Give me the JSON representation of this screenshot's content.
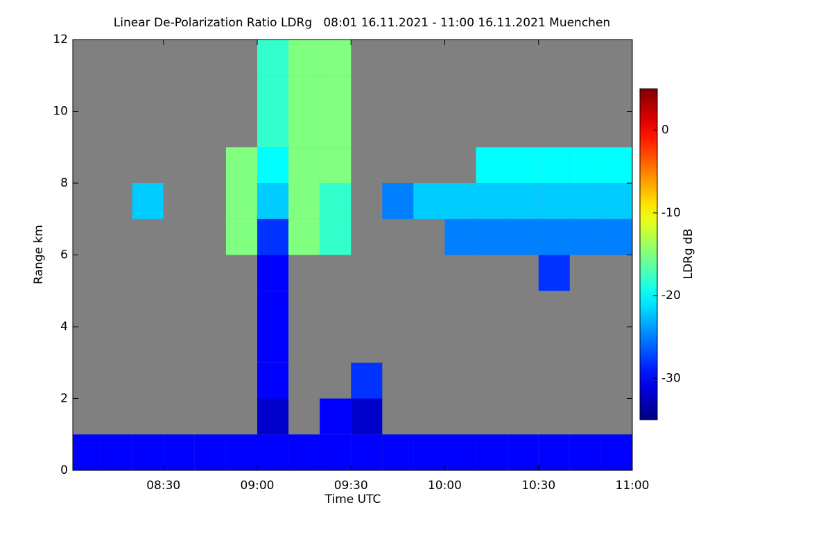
{
  "chart_data": {
    "type": "heatmap",
    "title": "Linear De-Polarization Ratio LDRg   08:01 16.11.2021 - 11:00 16.11.2021 Muenchen",
    "x_label": "Time UTC",
    "y_label": "Range km",
    "colorbar_label": "LDRg dB",
    "xlim": [
      481,
      660
    ],
    "xticks": [
      {
        "value": 510,
        "label": "08:30"
      },
      {
        "value": 540,
        "label": "09:00"
      },
      {
        "value": 570,
        "label": "09:30"
      },
      {
        "value": 600,
        "label": "10:00"
      },
      {
        "value": 630,
        "label": "10:30"
      },
      {
        "value": 660,
        "label": "11:00"
      }
    ],
    "ylim": [
      0,
      12
    ],
    "yticks": [
      0,
      2,
      4,
      6,
      8,
      10,
      12
    ],
    "clim": [
      -35,
      5
    ],
    "cticks": [
      -30,
      -20,
      -10,
      0
    ],
    "x_bins": [
      480,
      490,
      500,
      510,
      520,
      530,
      540,
      550,
      560,
      570,
      580,
      590,
      600,
      610,
      620,
      630,
      640,
      650,
      660
    ],
    "y_bins": [
      0,
      1,
      2,
      3,
      4,
      5,
      6,
      7,
      8,
      9,
      10,
      11,
      12
    ],
    "z": [
      [
        -30,
        -30,
        -30,
        -30,
        -30,
        -30,
        -30,
        -30,
        -30,
        -30,
        -30,
        -30,
        -30,
        -30,
        -30,
        -30,
        -30,
        -30
      ],
      [
        null,
        null,
        null,
        null,
        null,
        null,
        -32,
        null,
        -30,
        -32,
        null,
        null,
        null,
        null,
        null,
        null,
        null,
        null
      ],
      [
        null,
        null,
        null,
        null,
        null,
        null,
        -30,
        null,
        null,
        -28,
        null,
        null,
        null,
        null,
        null,
        null,
        null,
        null
      ],
      [
        null,
        null,
        null,
        null,
        null,
        null,
        -30,
        null,
        null,
        null,
        null,
        null,
        null,
        null,
        null,
        null,
        null,
        null
      ],
      [
        null,
        null,
        null,
        null,
        null,
        null,
        -30,
        null,
        null,
        null,
        null,
        null,
        null,
        null,
        null,
        null,
        null,
        null
      ],
      [
        null,
        null,
        null,
        null,
        null,
        null,
        -30,
        null,
        null,
        null,
        null,
        null,
        null,
        null,
        null,
        -28,
        null,
        null
      ],
      [
        null,
        null,
        null,
        null,
        null,
        -15,
        -28,
        -15,
        -18,
        null,
        null,
        null,
        -25,
        -25,
        -25,
        -25,
        -25,
        -25
      ],
      [
        null,
        null,
        -22,
        null,
        null,
        -15,
        -22,
        -15,
        -18,
        null,
        -25,
        -22,
        -22,
        -22,
        -22,
        -22,
        -22,
        -22
      ],
      [
        null,
        null,
        null,
        null,
        null,
        -15,
        -20,
        -15,
        -15,
        null,
        null,
        null,
        null,
        -20,
        -20,
        -20,
        -20,
        -20
      ],
      [
        null,
        null,
        null,
        null,
        null,
        null,
        -18,
        -15,
        -15,
        null,
        null,
        null,
        null,
        null,
        null,
        null,
        null,
        null
      ],
      [
        null,
        null,
        null,
        null,
        null,
        null,
        -18,
        -15,
        -15,
        null,
        null,
        null,
        null,
        null,
        null,
        null,
        null,
        null
      ],
      [
        null,
        null,
        null,
        null,
        null,
        null,
        -18,
        -15,
        -15,
        null,
        null,
        null,
        null,
        null,
        null,
        null,
        null,
        null
      ]
    ]
  }
}
